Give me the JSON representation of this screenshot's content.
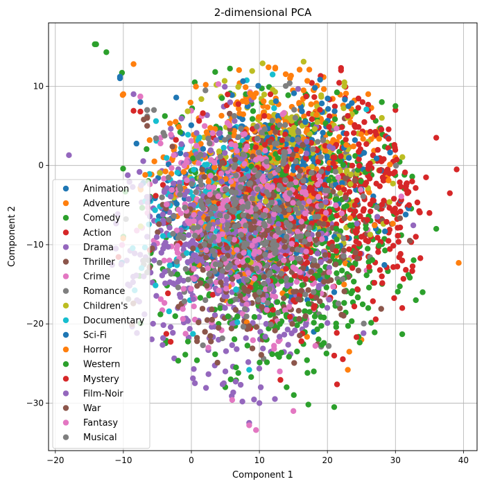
{
  "chart_data": {
    "type": "scatter",
    "title": "2-dimensional PCA",
    "xlabel": "Component 1",
    "ylabel": "Component 2",
    "xlim": [
      -21,
      42
    ],
    "ylim": [
      -36,
      18
    ],
    "xticks": [
      -20,
      -10,
      0,
      10,
      20,
      30,
      40
    ],
    "yticks": [
      -30,
      -20,
      -10,
      0,
      10
    ],
    "xtick_labels": [
      "−20",
      "−10",
      "0",
      "10",
      "20",
      "30",
      "40"
    ],
    "ytick_labels": [
      "−30",
      "−20",
      "−10",
      "0",
      "10"
    ],
    "grid": true,
    "legend_position": "lower-left",
    "series": [
      {
        "name": "Animation",
        "color": "#1f77b4",
        "center": [
          8,
          -4
        ],
        "spread": [
          7,
          6
        ],
        "points": [
          [
            -10.5,
            11
          ],
          [
            -7.5,
            8
          ],
          [
            -2.5,
            -4
          ],
          [
            1,
            1.5
          ],
          [
            4,
            -2
          ],
          [
            6,
            4
          ],
          [
            8,
            -8
          ],
          [
            10,
            -2
          ],
          [
            13,
            3
          ],
          [
            15,
            -13
          ],
          [
            20,
            1
          ],
          [
            23,
            2.5
          ],
          [
            27,
            -5
          ],
          [
            3,
            -15
          ],
          [
            11,
            -18
          ],
          [
            18,
            -21
          ]
        ]
      },
      {
        "name": "Adventure",
        "color": "#ff7f0e",
        "center": [
          14,
          3
        ],
        "spread": [
          8,
          5
        ],
        "points": [
          [
            -10,
            9
          ],
          [
            -8.5,
            12.8
          ],
          [
            39.3,
            -12.3
          ],
          [
            14.5,
            11
          ],
          [
            18,
            9.5
          ],
          [
            26,
            9
          ],
          [
            2,
            1
          ],
          [
            6,
            -2
          ],
          [
            23,
            -25.8
          ],
          [
            5,
            -17
          ],
          [
            12,
            5
          ],
          [
            16,
            7
          ],
          [
            30,
            1
          ],
          [
            10,
            -9
          ],
          [
            25,
            -22
          ]
        ]
      },
      {
        "name": "Comedy",
        "color": "#2ca02c",
        "center": [
          15,
          -7
        ],
        "spread": [
          9,
          8
        ],
        "points": [
          [
            -14,
            15.3
          ],
          [
            -12.5,
            14.3
          ],
          [
            -10.2,
            11.7
          ],
          [
            3.5,
            11.8
          ],
          [
            0.5,
            10.5
          ],
          [
            31,
            -21.3
          ],
          [
            21,
            -30.5
          ],
          [
            14,
            -28
          ],
          [
            34,
            -16
          ],
          [
            33,
            -17
          ],
          [
            36,
            -8
          ],
          [
            28,
            8
          ],
          [
            -10,
            -9
          ],
          [
            4,
            -20
          ],
          [
            18,
            -26
          ],
          [
            8,
            9
          ]
        ]
      },
      {
        "name": "Action",
        "color": "#d62728",
        "center": [
          26,
          -2
        ],
        "spread": [
          7,
          6
        ],
        "points": [
          [
            22,
            12.3
          ],
          [
            19,
            11.3
          ],
          [
            -8.5,
            6.9
          ],
          [
            39,
            -0.5
          ],
          [
            36,
            3.5
          ],
          [
            38,
            -3.5
          ],
          [
            30,
            7
          ],
          [
            31,
            -12
          ],
          [
            31,
            -18
          ],
          [
            35,
            -6
          ],
          [
            34.5,
            -1.5
          ],
          [
            28,
            -14
          ],
          [
            33,
            -9
          ],
          [
            21,
            -24
          ],
          [
            24,
            5
          ]
        ]
      },
      {
        "name": "Drama",
        "color": "#9467bd",
        "center": [
          7,
          -11
        ],
        "spread": [
          8,
          8
        ],
        "points": [
          [
            -18,
            1.3
          ],
          [
            -8.5,
            9
          ],
          [
            -9.5,
            -12
          ],
          [
            -8,
            -17
          ],
          [
            -7,
            -14
          ],
          [
            5,
            -26
          ],
          [
            7.5,
            -29.8
          ],
          [
            8.5,
            -32.5
          ],
          [
            10,
            -30
          ],
          [
            4,
            -22
          ],
          [
            -4,
            -10
          ],
          [
            -2,
            -18
          ],
          [
            2,
            -6
          ],
          [
            12,
            -12
          ],
          [
            6,
            -20
          ],
          [
            1,
            -3
          ]
        ]
      },
      {
        "name": "Thriller",
        "color": "#8c564b",
        "center": [
          12,
          -9
        ],
        "spread": [
          7,
          6
        ],
        "points": [
          [
            -6.5,
            5
          ],
          [
            -6.5,
            7
          ],
          [
            -7,
            5.8
          ],
          [
            2,
            -21
          ],
          [
            5,
            -12
          ],
          [
            9,
            -15
          ],
          [
            14,
            -13
          ],
          [
            18,
            -6
          ],
          [
            22,
            -12
          ],
          [
            -1,
            -8
          ],
          [
            11,
            -17
          ]
        ]
      },
      {
        "name": "Crime",
        "color": "#e377c2",
        "center": [
          8,
          -8
        ],
        "spread": [
          7,
          6
        ],
        "points": [
          [
            -7.5,
            8.7
          ],
          [
            -3,
            3.9
          ],
          [
            2.5,
            -23
          ],
          [
            8.5,
            -32.8
          ],
          [
            9.5,
            -33.4
          ],
          [
            15,
            -31
          ],
          [
            -4,
            -12
          ],
          [
            6,
            -15
          ],
          [
            10,
            -5
          ],
          [
            13,
            -22
          ],
          [
            4,
            -9
          ]
        ]
      },
      {
        "name": "Romance",
        "color": "#7f7f7f",
        "center": [
          10,
          -7
        ],
        "spread": [
          7,
          6
        ],
        "points": [
          [
            -6.5,
            6.2
          ],
          [
            -5.5,
            7
          ],
          [
            -7,
            -12.5
          ],
          [
            -6.5,
            -13.5
          ],
          [
            4,
            -9
          ],
          [
            12,
            -4
          ],
          [
            16,
            -12
          ],
          [
            7,
            -16
          ],
          [
            20,
            -8
          ]
        ]
      },
      {
        "name": "Children's",
        "color": "#bcbd22",
        "center": [
          14,
          1
        ],
        "spread": [
          8,
          5
        ],
        "points": [
          [
            16.5,
            13.1
          ],
          [
            22.5,
            10.5
          ],
          [
            22.5,
            10
          ],
          [
            28,
            6
          ],
          [
            19.5,
            -0.5
          ],
          [
            17,
            2
          ],
          [
            9,
            1
          ],
          [
            13,
            -3
          ],
          [
            26,
            3
          ]
        ]
      },
      {
        "name": "Documentary",
        "color": "#17becf",
        "center": [
          4,
          -6
        ],
        "spread": [
          6,
          6
        ],
        "points": [
          [
            -5.2,
            5.6
          ],
          [
            -6,
            -4.5
          ],
          [
            -6.8,
            -4.5
          ],
          [
            1.5,
            -5.2
          ],
          [
            2.5,
            -8
          ],
          [
            5.5,
            -13
          ],
          [
            8.5,
            -25.8
          ],
          [
            4,
            -1
          ],
          [
            9,
            -9
          ]
        ]
      },
      {
        "name": "Sci-Fi",
        "color": "#1f77b4",
        "center": [
          14,
          -2
        ],
        "spread": [
          8,
          6
        ],
        "points": [
          [
            -10.5,
            11.2
          ],
          [
            10.5,
            4.5
          ],
          [
            18,
            -1
          ],
          [
            25,
            -3
          ],
          [
            12,
            -10
          ],
          [
            7,
            2
          ],
          [
            21,
            -16
          ]
        ]
      },
      {
        "name": "Horror",
        "color": "#ff7f0e",
        "center": [
          10,
          -3
        ],
        "spread": [
          8,
          6
        ],
        "points": [
          [
            -10.1,
            8.9
          ],
          [
            6,
            6
          ],
          [
            12,
            -1
          ],
          [
            17,
            4.5
          ],
          [
            3,
            -4
          ],
          [
            15,
            -8
          ]
        ]
      },
      {
        "name": "Western",
        "color": "#2ca02c",
        "center": [
          14,
          -12
        ],
        "spread": [
          8,
          7
        ],
        "points": [
          [
            -14.2,
            15.3
          ],
          [
            4.5,
            8.5
          ],
          [
            30,
            7.5
          ],
          [
            26,
            -18
          ],
          [
            11,
            -22
          ],
          [
            20,
            -14
          ],
          [
            6,
            -9
          ]
        ]
      },
      {
        "name": "Mystery",
        "color": "#d62728",
        "center": [
          16,
          -5
        ],
        "spread": [
          8,
          7
        ],
        "points": [
          [
            -7.5,
            6.8
          ],
          [
            22,
            12
          ],
          [
            32,
            -5
          ],
          [
            18,
            -18
          ],
          [
            14,
            2
          ],
          [
            25,
            -9
          ]
        ]
      },
      {
        "name": "Film-Noir",
        "color": "#9467bd",
        "center": [
          6,
          -9
        ],
        "spread": [
          7,
          7
        ],
        "points": [
          [
            -6.5,
            -9
          ],
          [
            3,
            -14
          ],
          [
            8,
            -5
          ],
          [
            11,
            -20
          ],
          [
            0,
            -12
          ]
        ]
      },
      {
        "name": "War",
        "color": "#8c564b",
        "center": [
          10,
          -10
        ],
        "spread": [
          7,
          6
        ],
        "points": [
          [
            -6.5,
            6
          ],
          [
            4,
            -20.5
          ],
          [
            13,
            -14
          ],
          [
            16,
            -8
          ],
          [
            8,
            -4
          ]
        ]
      },
      {
        "name": "Fantasy",
        "color": "#e377c2",
        "center": [
          8,
          -6
        ],
        "spread": [
          7,
          6
        ],
        "points": [
          [
            -7.5,
            8.7
          ],
          [
            -4.5,
            3.5
          ],
          [
            6,
            -29.6
          ],
          [
            13,
            -26
          ],
          [
            3,
            -8
          ],
          [
            10,
            1
          ]
        ]
      },
      {
        "name": "Musical",
        "color": "#7f7f7f",
        "center": [
          9,
          -5
        ],
        "spread": [
          7,
          6
        ],
        "points": [
          [
            -6.5,
            7
          ],
          [
            -7,
            -12
          ],
          [
            5,
            -3
          ],
          [
            14,
            -9
          ],
          [
            10,
            -16
          ]
        ]
      }
    ]
  }
}
